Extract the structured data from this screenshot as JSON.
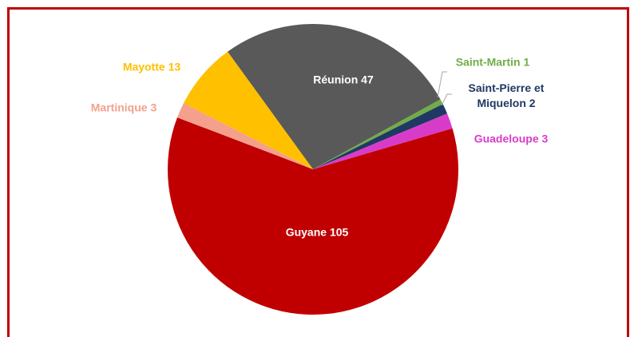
{
  "chart_data": {
    "type": "pie",
    "categories": [
      "Réunion",
      "Saint-Martin",
      "Saint-Pierre et Miquelon",
      "Guadeloupe",
      "Guyane",
      "Martinique",
      "Mayotte"
    ],
    "values": [
      47,
      1,
      2,
      3,
      105,
      3,
      13
    ],
    "colors": [
      "#595959",
      "#70ad47",
      "#203864",
      "#d93bc9",
      "#c00000",
      "#f4a08c",
      "#ffc000"
    ],
    "label_colors": [
      "#ffffff",
      "#70ad47",
      "#203864",
      "#d93bc9",
      "#ffffff",
      "#f4a08c",
      "#ffc000"
    ]
  }
}
